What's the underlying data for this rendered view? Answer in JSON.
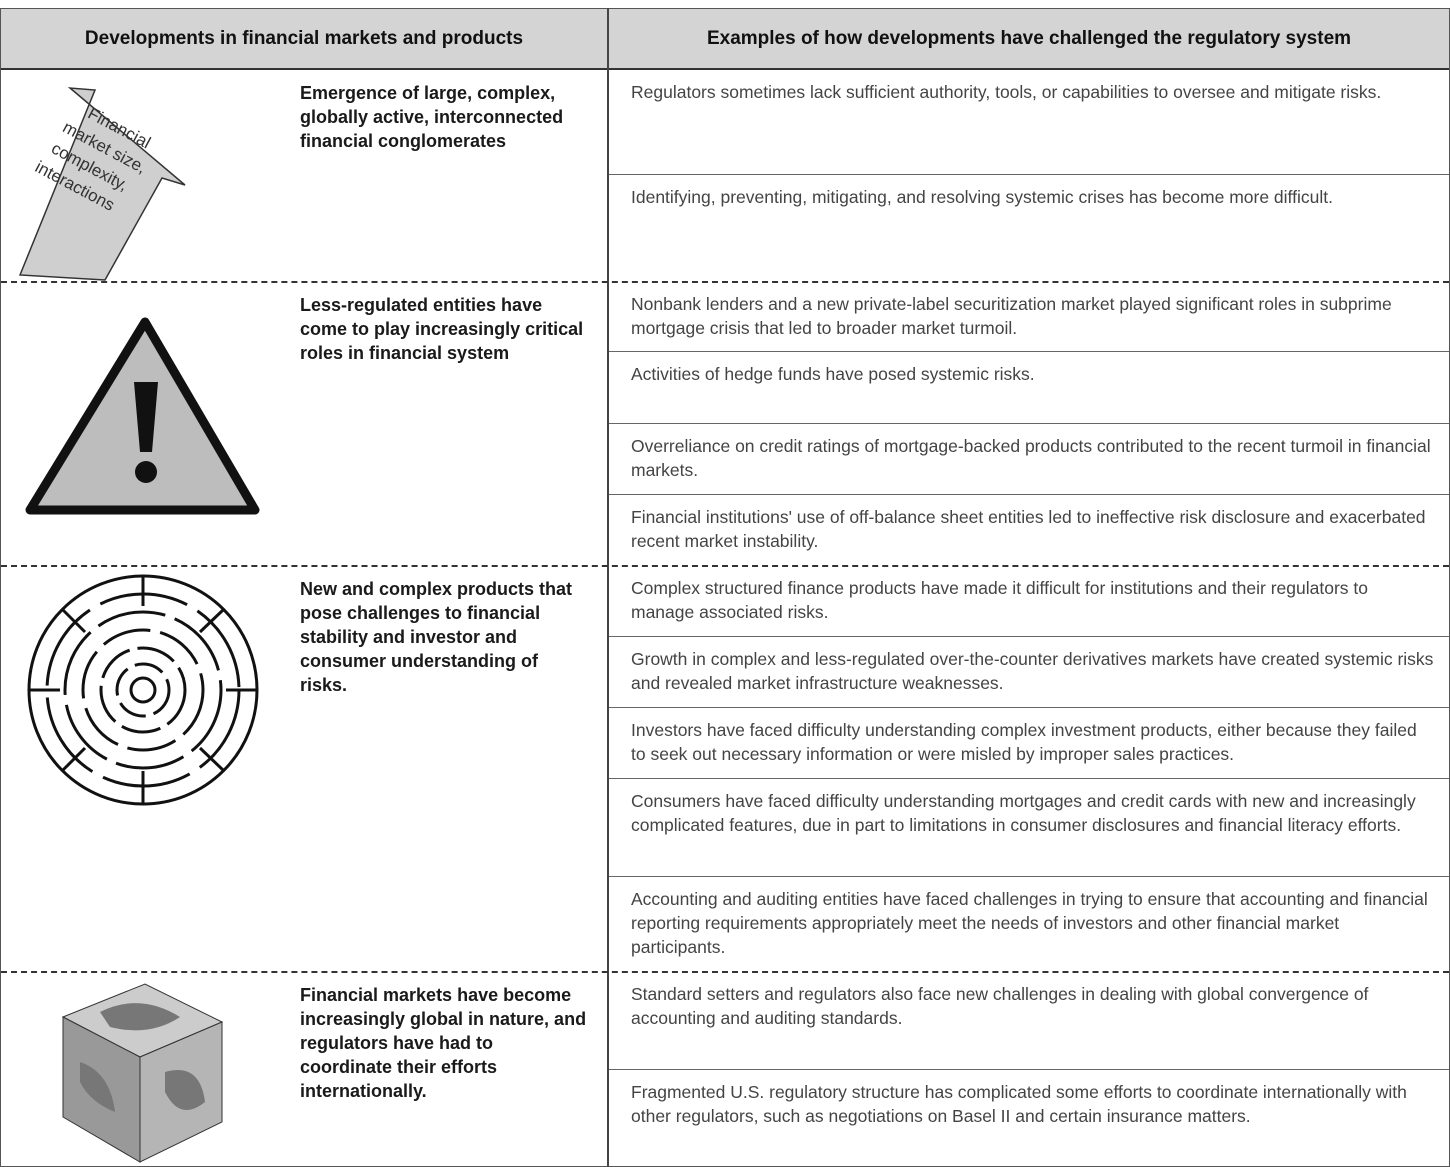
{
  "header": {
    "columns": [
      "Developments in financial markets and products",
      "Examples of how developments have challenged the regulatory system"
    ]
  },
  "groups": [
    {
      "icon_label": [
        "Financial",
        "market size,",
        "complexity,",
        "interactions"
      ],
      "title": "Emergence of large, complex, globally active, interconnected financial conglomerates",
      "examples": [
        "Regulators sometimes lack sufficient authority, tools, or capabilities to oversee and mitigate risks.",
        "Identifying, preventing, mitigating, and resolving systemic crises has become more difficult."
      ]
    },
    {
      "title": "Less-regulated entities have come to play increasingly critical roles in financial system",
      "examples": [
        "Nonbank lenders and a new private-label securitization market played significant roles in subprime mortgage crisis that led to broader market turmoil.",
        "Activities of hedge funds have posed systemic risks.",
        "Overreliance on credit ratings of mortgage-backed products contributed to the recent turmoil in financial markets.",
        "Financial institutions' use of off-balance sheet entities led to ineffective risk disclosure and exacerbated recent market instability."
      ]
    },
    {
      "title": "New and complex products that pose challenges to financial stability and investor and consumer understanding of risks.",
      "examples": [
        "Complex structured finance products have made it difficult for institutions and their regulators to manage associated risks.",
        "Growth in complex and less-regulated over-the-counter derivatives markets have created systemic risks and revealed market infrastructure weaknesses.",
        "Investors have faced difficulty understanding complex investment products, either because they failed to seek out necessary information or were misled by improper sales practices.",
        "Consumers have faced difficulty understanding mortgages and credit cards with new and increasingly complicated features, due in part to limitations in consumer disclosures and financial literacy efforts.",
        "Accounting and auditing entities have faced challenges in trying to ensure that accounting and financial reporting requirements appropriately meet the needs of investors and other financial market participants."
      ]
    },
    {
      "title": "Financial markets have become increasingly global in nature, and regulators have had to coordinate their efforts internationally.",
      "examples": [
        "Standard setters and regulators also face new challenges in dealing with global convergence of accounting and auditing standards.",
        "Fragmented U.S. regulatory structure has complicated some efforts to coordinate internationally with other regulators, such as negotiations on Basel II and certain insurance matters."
      ]
    }
  ]
}
